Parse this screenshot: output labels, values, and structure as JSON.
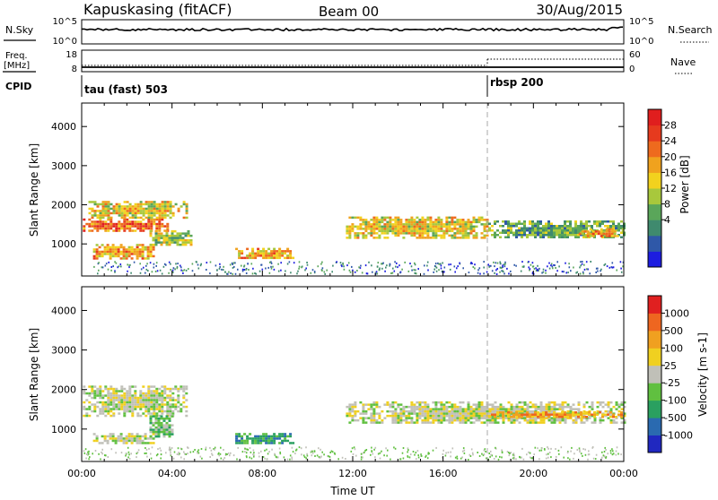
{
  "header": {
    "station": "Kapuskasing (fitACF)",
    "beam": "Beam 00",
    "date": "30/Aug/2015"
  },
  "top_panels": {
    "sky_label": "N.Sky",
    "sky_ticks": [
      "10^5",
      "10^0"
    ],
    "search_label": "N.Search",
    "search_ticks": [
      "10^5",
      "10^0"
    ],
    "freq_label_1": "Freq.",
    "freq_label_2": "[MHz]",
    "freq_ticks": [
      "18",
      "8"
    ],
    "nave_label": "Nave",
    "nave_ticks": [
      "60",
      "0"
    ],
    "cpid_label": "CPID",
    "cpid_segments": [
      {
        "label": "tau (fast) 503",
        "start_hour": 0
      },
      {
        "label": "rbsp 200",
        "start_hour": 18
      }
    ]
  },
  "chart_data": [
    {
      "type": "heatmap",
      "name": "power",
      "xlabel": "",
      "ylabel": "Slant Range [km]",
      "xlim": [
        0,
        24
      ],
      "ylim": [
        180,
        4600
      ],
      "yticks": [
        1000,
        2000,
        3000,
        4000
      ],
      "colorbar": {
        "label": "Power [dB]",
        "ticks": [
          "28",
          "24",
          "20",
          "16",
          "12",
          "8",
          "4"
        ],
        "colors": [
          "#1d1de0",
          "#2f58a8",
          "#3f8a6e",
          "#5aa65a",
          "#a8c83c",
          "#f2d21e",
          "#f0a21e",
          "#ee6a1e",
          "#e63a1e",
          "#e01e1e"
        ]
      },
      "regions": [
        {
          "t0": 0.05,
          "t1": 3.8,
          "r0": 1350,
          "r1": 1650,
          "level": 7
        },
        {
          "t0": 0.3,
          "t1": 4.6,
          "r0": 1650,
          "r1": 2100,
          "level": 5
        },
        {
          "t0": 0.5,
          "t1": 3.2,
          "r0": 650,
          "r1": 1000,
          "level": 6
        },
        {
          "t0": 3.0,
          "t1": 4.8,
          "r0": 1000,
          "r1": 1350,
          "level": 4
        },
        {
          "t0": 6.8,
          "t1": 9.4,
          "r0": 650,
          "r1": 900,
          "level": 6
        },
        {
          "t0": 11.7,
          "t1": 18.0,
          "r0": 1150,
          "r1": 1700,
          "level": 5
        },
        {
          "t0": 18.0,
          "t1": 24.0,
          "r0": 1150,
          "r1": 1600,
          "level": 3
        },
        {
          "t0": 22.0,
          "t1": 24.0,
          "r0": 1200,
          "r1": 1400,
          "level": 6
        }
      ]
    },
    {
      "type": "heatmap",
      "name": "velocity",
      "xlabel": "Time UT",
      "ylabel": "Slant Range [km]",
      "xlim": [
        0,
        24
      ],
      "ylim": [
        180,
        4600
      ],
      "yticks": [
        1000,
        2000,
        3000,
        4000
      ],
      "xticks": [
        "00:00",
        "04:00",
        "08:00",
        "12:00",
        "16:00",
        "20:00",
        "00:00"
      ],
      "colorbar": {
        "label": "Velocity [m s-1]",
        "ticks": [
          "1000",
          "500",
          "100",
          "25",
          "-25",
          "-100",
          "-500",
          "-1000"
        ],
        "colors": [
          "#2028c0",
          "#2a6ab0",
          "#2aa060",
          "#60c040",
          "#c0c0b8",
          "#f0d020",
          "#f0a020",
          "#ee6620",
          "#e02020"
        ]
      },
      "regions": [
        {
          "t0": 0.05,
          "t1": 4.6,
          "r0": 1350,
          "r1": 2100,
          "level": 4
        },
        {
          "t0": 0.5,
          "t1": 3.2,
          "r0": 650,
          "r1": 900,
          "level": 4
        },
        {
          "t0": 3.0,
          "t1": 4.0,
          "r0": 800,
          "r1": 1350,
          "level": 3
        },
        {
          "t0": 6.8,
          "t1": 9.4,
          "r0": 650,
          "r1": 900,
          "level": 2
        },
        {
          "t0": 11.7,
          "t1": 24.0,
          "r0": 1150,
          "r1": 1700,
          "level": 4
        },
        {
          "t0": 18.0,
          "t1": 24.0,
          "r0": 1300,
          "r1": 1450,
          "level": 6
        }
      ]
    }
  ]
}
